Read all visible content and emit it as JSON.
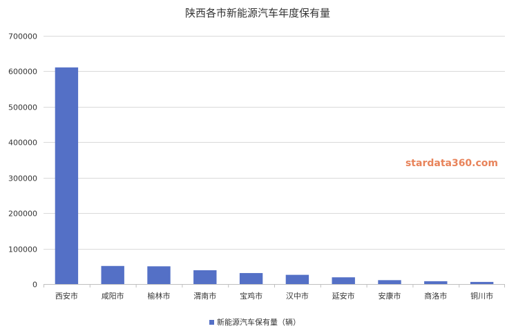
{
  "chart_data": {
    "type": "bar",
    "title": "陕西各市新能源汽车年度保有量",
    "categories": [
      "西安市",
      "咸阳市",
      "榆林市",
      "渭南市",
      "宝鸡市",
      "汉中市",
      "延安市",
      "安康市",
      "商洛市",
      "铜川市"
    ],
    "series": [
      {
        "name": "新能源汽车保有量（辆）",
        "values": [
          611000,
          51000,
          50000,
          39000,
          31000,
          26000,
          19000,
          11000,
          8000,
          6000
        ]
      }
    ],
    "ylim": [
      0,
      700000
    ],
    "yticks": [
      0,
      100000,
      200000,
      300000,
      400000,
      500000,
      600000,
      700000
    ],
    "grid": true,
    "legend_position": "bottom",
    "bar_color": "#5470c6",
    "watermark": "stardata360.com",
    "watermark_color": "#e8835a"
  }
}
